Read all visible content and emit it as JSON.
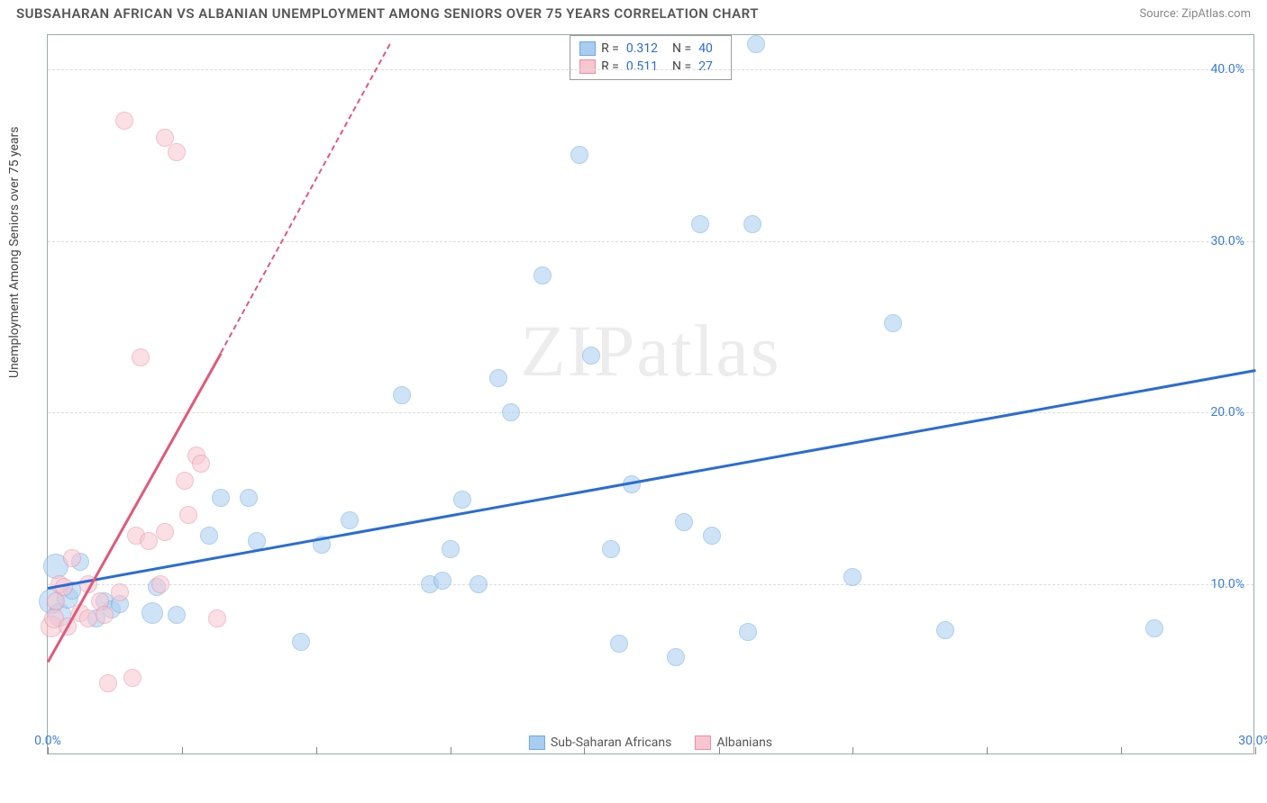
{
  "title": "SUBSAHARAN AFRICAN VS ALBANIAN UNEMPLOYMENT AMONG SENIORS OVER 75 YEARS CORRELATION CHART",
  "source": "Source: ZipAtlas.com",
  "y_axis_label": "Unemployment Among Seniors over 75 years",
  "watermark": "ZIPatlas",
  "chart": {
    "type": "scatter",
    "xlim": [
      0,
      30
    ],
    "ylim": [
      0,
      42
    ],
    "x_ticks": [
      0,
      3.33,
      6.67,
      10,
      13.33,
      16.67,
      20,
      23.33,
      26.67,
      30
    ],
    "x_tick_labels": {
      "0": "0.0%",
      "30": "30.0%"
    },
    "y_gridlines": [
      10,
      20,
      30,
      40
    ],
    "y_tick_labels": {
      "10": "10.0%",
      "20": "20.0%",
      "30": "30.0%",
      "40": "40.0%"
    },
    "background_color": "#ffffff",
    "grid_color": "#dddddd",
    "border_color": "#9aa0a6",
    "series": [
      {
        "name": "Sub-Saharan Africans",
        "marker_color": "#a9cdf0",
        "marker_border": "#6fa8e0",
        "fill_opacity": 0.55,
        "marker_radius": 9,
        "trend_color": "#2b6cd4",
        "trend": {
          "x1": 0,
          "y1": 9.8,
          "x2": 30,
          "y2": 22.5
        },
        "R": "0.312",
        "N": "40",
        "points": [
          [
            0.1,
            9.0,
            14
          ],
          [
            0.2,
            11.0,
            14
          ],
          [
            0.3,
            8.2,
            13
          ],
          [
            0.5,
            9.2,
            12
          ],
          [
            0.6,
            9.6,
            10
          ],
          [
            0.8,
            11.3,
            10
          ],
          [
            1.2,
            8.0,
            10
          ],
          [
            1.4,
            9.0,
            10
          ],
          [
            1.6,
            8.5,
            10
          ],
          [
            1.8,
            8.8,
            10
          ],
          [
            2.6,
            8.3,
            12
          ],
          [
            2.7,
            9.8,
            10
          ],
          [
            3.2,
            8.2,
            10
          ],
          [
            4.0,
            12.8,
            10
          ],
          [
            4.3,
            15.0,
            10
          ],
          [
            5.0,
            15.0,
            10
          ],
          [
            5.2,
            12.5,
            10
          ],
          [
            6.3,
            6.6,
            10
          ],
          [
            6.8,
            12.3,
            10
          ],
          [
            7.5,
            13.7,
            10
          ],
          [
            8.8,
            21.0,
            10
          ],
          [
            9.5,
            10.0,
            10
          ],
          [
            9.8,
            10.2,
            10
          ],
          [
            10.0,
            12.0,
            10
          ],
          [
            10.3,
            14.9,
            10
          ],
          [
            10.7,
            10.0,
            10
          ],
          [
            11.2,
            22.0,
            10
          ],
          [
            11.5,
            20.0,
            10
          ],
          [
            12.3,
            28.0,
            10
          ],
          [
            13.2,
            35.0,
            10
          ],
          [
            13.5,
            23.3,
            10
          ],
          [
            14.0,
            12.0,
            10
          ],
          [
            14.2,
            6.5,
            10
          ],
          [
            14.5,
            15.8,
            10
          ],
          [
            15.6,
            5.7,
            10
          ],
          [
            15.8,
            13.6,
            10
          ],
          [
            16.2,
            31.0,
            10
          ],
          [
            16.5,
            12.8,
            10
          ],
          [
            17.4,
            7.2,
            10
          ],
          [
            17.5,
            31.0,
            10
          ],
          [
            17.6,
            41.5,
            10
          ],
          [
            20.0,
            10.4,
            10
          ],
          [
            21.0,
            25.2,
            10
          ],
          [
            22.3,
            7.3,
            10
          ],
          [
            27.5,
            7.4,
            10
          ]
        ]
      },
      {
        "name": "Albanians",
        "marker_color": "#f7c6d0",
        "marker_border": "#e98fa6",
        "fill_opacity": 0.55,
        "marker_radius": 9,
        "trend_color": "#e05a7a",
        "trend": {
          "x1": 0,
          "y1": 5.5,
          "x2": 4.3,
          "y2": 23.5
        },
        "trend_dash": {
          "x1": 4.3,
          "y1": 23.5,
          "x2": 8.5,
          "y2": 41.5
        },
        "R": "0.511",
        "N": "27",
        "points": [
          [
            0.1,
            7.5,
            12
          ],
          [
            0.15,
            8.0,
            11
          ],
          [
            0.2,
            9.0,
            10
          ],
          [
            0.3,
            10.0,
            10
          ],
          [
            0.4,
            9.8,
            10
          ],
          [
            0.5,
            7.5,
            10
          ],
          [
            0.6,
            11.5,
            10
          ],
          [
            0.8,
            8.3,
            10
          ],
          [
            1.0,
            8.0,
            10
          ],
          [
            1.0,
            10.0,
            10
          ],
          [
            1.3,
            9.0,
            10
          ],
          [
            1.4,
            8.2,
            10
          ],
          [
            1.5,
            4.2,
            10
          ],
          [
            1.8,
            9.5,
            10
          ],
          [
            1.9,
            37.0,
            10
          ],
          [
            2.1,
            4.5,
            10
          ],
          [
            2.2,
            12.8,
            10
          ],
          [
            2.3,
            23.2,
            10
          ],
          [
            2.5,
            12.5,
            10
          ],
          [
            2.8,
            10.0,
            10
          ],
          [
            2.9,
            36.0,
            10
          ],
          [
            2.9,
            13.0,
            10
          ],
          [
            3.2,
            35.2,
            10
          ],
          [
            3.4,
            16.0,
            10
          ],
          [
            3.5,
            14.0,
            10
          ],
          [
            3.7,
            17.5,
            10
          ],
          [
            3.8,
            17.0,
            10
          ],
          [
            4.2,
            8.0,
            10
          ]
        ]
      }
    ],
    "legend_bottom": [
      {
        "label": "Sub-Saharan Africans",
        "fill": "#a9cdf0",
        "border": "#6fa8e0"
      },
      {
        "label": "Albanians",
        "fill": "#f7c6d0",
        "border": "#e98fa6"
      }
    ]
  }
}
